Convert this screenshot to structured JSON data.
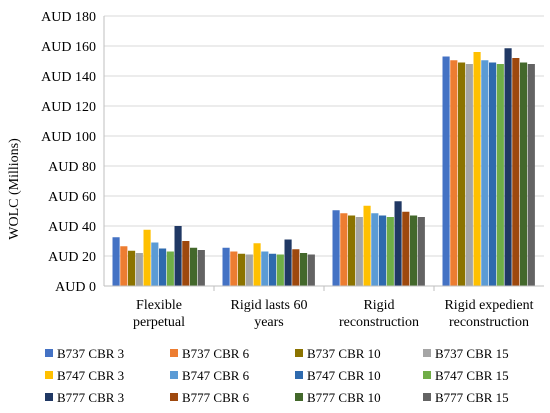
{
  "chart_data": {
    "type": "bar",
    "title": "",
    "xlabel": "",
    "ylabel": "WOLC (Millions)",
    "ylim": [
      0,
      180
    ],
    "ytick_step": 20,
    "ytick_prefix": "AUD ",
    "grid": "horizontal",
    "legend_position": "bottom",
    "categories": [
      [
        "Flexible",
        "perpetual"
      ],
      [
        "Rigid lasts 60",
        "years"
      ],
      [
        "Rigid",
        "reconstruction"
      ],
      [
        "Rigid expedient",
        "reconstruction"
      ]
    ],
    "series": [
      {
        "name": "B737 CBR 3",
        "color": "#4472C4",
        "values": [
          32.5,
          25.5,
          50.5,
          153
        ]
      },
      {
        "name": "B737 CBR 6",
        "color": "#ED7D31",
        "values": [
          26.5,
          23.0,
          48.5,
          150.5
        ]
      },
      {
        "name": "B737 CBR 10",
        "color": "#8B7300",
        "values": [
          23.5,
          21.5,
          47.0,
          149
        ]
      },
      {
        "name": "B737 CBR 15",
        "color": "#A5A5A5",
        "values": [
          22.0,
          21.0,
          46.0,
          148
        ]
      },
      {
        "name": "B747 CBR 3",
        "color": "#FFC000",
        "values": [
          37.5,
          28.5,
          53.5,
          156
        ]
      },
      {
        "name": "B747 CBR 6",
        "color": "#5B9BD5",
        "values": [
          29.0,
          23.0,
          48.5,
          150.5
        ]
      },
      {
        "name": "B747 CBR 10",
        "color": "#2E6AAE",
        "values": [
          25.0,
          21.5,
          47.0,
          149
        ]
      },
      {
        "name": "B747 CBR 15",
        "color": "#70AD47",
        "values": [
          23.0,
          21.0,
          46.0,
          148
        ]
      },
      {
        "name": "B777 CBR 3",
        "color": "#203864",
        "values": [
          40.0,
          31.0,
          56.5,
          158.5
        ]
      },
      {
        "name": "B777 CBR 6",
        "color": "#9E480E",
        "values": [
          30.0,
          24.5,
          49.5,
          152
        ]
      },
      {
        "name": "B777 CBR 10",
        "color": "#43682B",
        "values": [
          25.5,
          22.0,
          47.0,
          149
        ]
      },
      {
        "name": "B777 CBR 15",
        "color": "#636363",
        "values": [
          24.0,
          21.0,
          46.0,
          148
        ]
      }
    ]
  }
}
